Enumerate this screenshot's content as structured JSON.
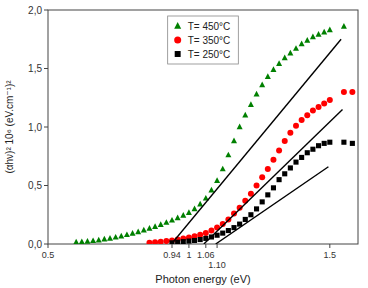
{
  "chart_data": {
    "type": "scatter",
    "xlabel": "Photon energy (eV)",
    "ylabel": "(αhν)² 10⁶ (eV.cm⁻¹)²",
    "xlim": [
      0.5,
      1.6
    ],
    "ylim": [
      0.0,
      2.0
    ],
    "xticks": [
      0.5,
      0.94,
      1,
      1.06,
      {
        "value": 1.1,
        "label": "1.10"
      },
      1.5
    ],
    "yticks": [
      {
        "value": 0.0,
        "label": "0,0"
      },
      {
        "value": 0.5,
        "label": "0,5"
      },
      {
        "value": 1.0,
        "label": "1,0"
      },
      {
        "value": 1.5,
        "label": "1,5"
      },
      {
        "value": 2.0,
        "label": "2,0"
      }
    ],
    "grid": false,
    "legend": "upper center",
    "series": [
      {
        "name": "T= 450°C",
        "type": "scatter",
        "color": "green",
        "marker": "triangle",
        "x": [
          0.6,
          0.62,
          0.64,
          0.66,
          0.68,
          0.7,
          0.72,
          0.74,
          0.76,
          0.78,
          0.8,
          0.82,
          0.84,
          0.86,
          0.88,
          0.9,
          0.92,
          0.94,
          0.96,
          0.98,
          1.0,
          1.02,
          1.04,
          1.06,
          1.08,
          1.1,
          1.12,
          1.14,
          1.16,
          1.18,
          1.2,
          1.22,
          1.24,
          1.26,
          1.28,
          1.3,
          1.32,
          1.34,
          1.36,
          1.38,
          1.4,
          1.42,
          1.44,
          1.46,
          1.48,
          1.5,
          1.55
        ],
        "values": [
          0.015,
          0.018,
          0.022,
          0.027,
          0.033,
          0.04,
          0.048,
          0.057,
          0.067,
          0.078,
          0.09,
          0.103,
          0.117,
          0.132,
          0.148,
          0.165,
          0.183,
          0.202,
          0.222,
          0.244,
          0.268,
          0.3,
          0.34,
          0.39,
          0.46,
          0.54,
          0.64,
          0.76,
          0.88,
          1.0,
          1.1,
          1.19,
          1.28,
          1.36,
          1.43,
          1.49,
          1.54,
          1.59,
          1.63,
          1.67,
          1.71,
          1.74,
          1.77,
          1.79,
          1.81,
          1.83,
          1.86
        ]
      },
      {
        "name": "T= 350°C",
        "type": "scatter",
        "color": "red",
        "marker": "circle",
        "x": [
          0.86,
          0.88,
          0.9,
          0.92,
          0.94,
          0.96,
          0.98,
          1.0,
          1.02,
          1.04,
          1.06,
          1.08,
          1.1,
          1.12,
          1.14,
          1.16,
          1.18,
          1.2,
          1.22,
          1.24,
          1.26,
          1.28,
          1.3,
          1.32,
          1.34,
          1.36,
          1.38,
          1.4,
          1.42,
          1.44,
          1.46,
          1.48,
          1.5,
          1.55,
          1.58
        ],
        "values": [
          0.01,
          0.015,
          0.02,
          0.025,
          0.03,
          0.038,
          0.046,
          0.056,
          0.067,
          0.08,
          0.095,
          0.115,
          0.14,
          0.17,
          0.21,
          0.26,
          0.31,
          0.37,
          0.43,
          0.5,
          0.57,
          0.64,
          0.72,
          0.8,
          0.88,
          0.95,
          1.01,
          1.06,
          1.1,
          1.14,
          1.17,
          1.2,
          1.23,
          1.3,
          1.3
        ]
      },
      {
        "name": "T= 250°C",
        "type": "scatter",
        "color": "black",
        "marker": "square",
        "x": [
          0.94,
          0.96,
          0.98,
          1.0,
          1.02,
          1.04,
          1.06,
          1.08,
          1.1,
          1.12,
          1.14,
          1.16,
          1.18,
          1.2,
          1.22,
          1.24,
          1.26,
          1.28,
          1.3,
          1.32,
          1.34,
          1.36,
          1.38,
          1.4,
          1.42,
          1.44,
          1.46,
          1.48,
          1.5,
          1.55,
          1.58
        ],
        "values": [
          0.01,
          0.015,
          0.02,
          0.025,
          0.03,
          0.038,
          0.048,
          0.06,
          0.075,
          0.093,
          0.115,
          0.14,
          0.17,
          0.21,
          0.25,
          0.3,
          0.36,
          0.42,
          0.48,
          0.55,
          0.6,
          0.65,
          0.7,
          0.74,
          0.78,
          0.81,
          0.84,
          0.86,
          0.87,
          0.87,
          0.86
        ]
      },
      {
        "type": "line",
        "color": "black",
        "line_style": "solid",
        "x": [
          0.938,
          1.54
        ],
        "values": [
          0.0,
          1.75
        ]
      },
      {
        "type": "line",
        "color": "black",
        "line_style": "solid",
        "x": [
          1.053,
          1.545
        ],
        "values": [
          0.0,
          1.15
        ]
      },
      {
        "type": "line",
        "color": "black",
        "line_style": "solid",
        "x": [
          1.095,
          1.495
        ],
        "values": [
          0.0,
          0.66
        ]
      }
    ]
  }
}
